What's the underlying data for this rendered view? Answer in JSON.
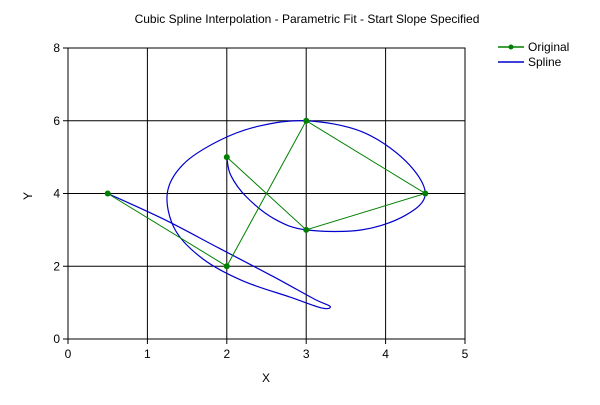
{
  "chart_data": {
    "type": "line",
    "title": "Cubic Spline Interpolation - Parametric Fit - Start Slope Specified",
    "xlabel": "X",
    "ylabel": "Y",
    "xlim": [
      0,
      5
    ],
    "ylim": [
      0,
      8
    ],
    "x_ticks": [
      "0",
      "1",
      "2",
      "3",
      "4",
      "5"
    ],
    "y_ticks": [
      "0",
      "2",
      "4",
      "6",
      "8"
    ],
    "grid": true,
    "legend_position": "top-right",
    "series": [
      {
        "name": "Original",
        "color": "#008000",
        "style": "line-with-markers",
        "points": [
          {
            "x": 0.5,
            "y": 4
          },
          {
            "x": 2,
            "y": 2
          },
          {
            "x": 3,
            "y": 6
          },
          {
            "x": 4.5,
            "y": 4
          },
          {
            "x": 3,
            "y": 3
          },
          {
            "x": 2,
            "y": 5
          }
        ]
      },
      {
        "name": "Spline",
        "color": "#0000cc",
        "style": "smooth-line",
        "points": [
          {
            "x": 0.5,
            "y": 4
          },
          {
            "x": 1.2,
            "y": 3.3
          },
          {
            "x": 1.9,
            "y": 2.5
          },
          {
            "x": 2.6,
            "y": 1.7
          },
          {
            "x": 3.1,
            "y": 1.1
          },
          {
            "x": 3.3,
            "y": 0.9
          },
          {
            "x": 3.2,
            "y": 0.85
          },
          {
            "x": 2.8,
            "y": 1.15
          },
          {
            "x": 2.2,
            "y": 1.6
          },
          {
            "x": 1.7,
            "y": 2.2
          },
          {
            "x": 1.35,
            "y": 3.0
          },
          {
            "x": 1.25,
            "y": 4.0
          },
          {
            "x": 1.45,
            "y": 4.8
          },
          {
            "x": 1.9,
            "y": 5.45
          },
          {
            "x": 2.4,
            "y": 5.85
          },
          {
            "x": 3,
            "y": 6
          },
          {
            "x": 3.7,
            "y": 5.7
          },
          {
            "x": 4.25,
            "y": 4.9
          },
          {
            "x": 4.5,
            "y": 4
          },
          {
            "x": 4.25,
            "y": 3.4
          },
          {
            "x": 3.7,
            "y": 3.0
          },
          {
            "x": 3,
            "y": 3
          },
          {
            "x": 2.6,
            "y": 3.3
          },
          {
            "x": 2.25,
            "y": 3.9
          },
          {
            "x": 2.05,
            "y": 4.5
          },
          {
            "x": 2,
            "y": 5
          }
        ]
      }
    ]
  }
}
